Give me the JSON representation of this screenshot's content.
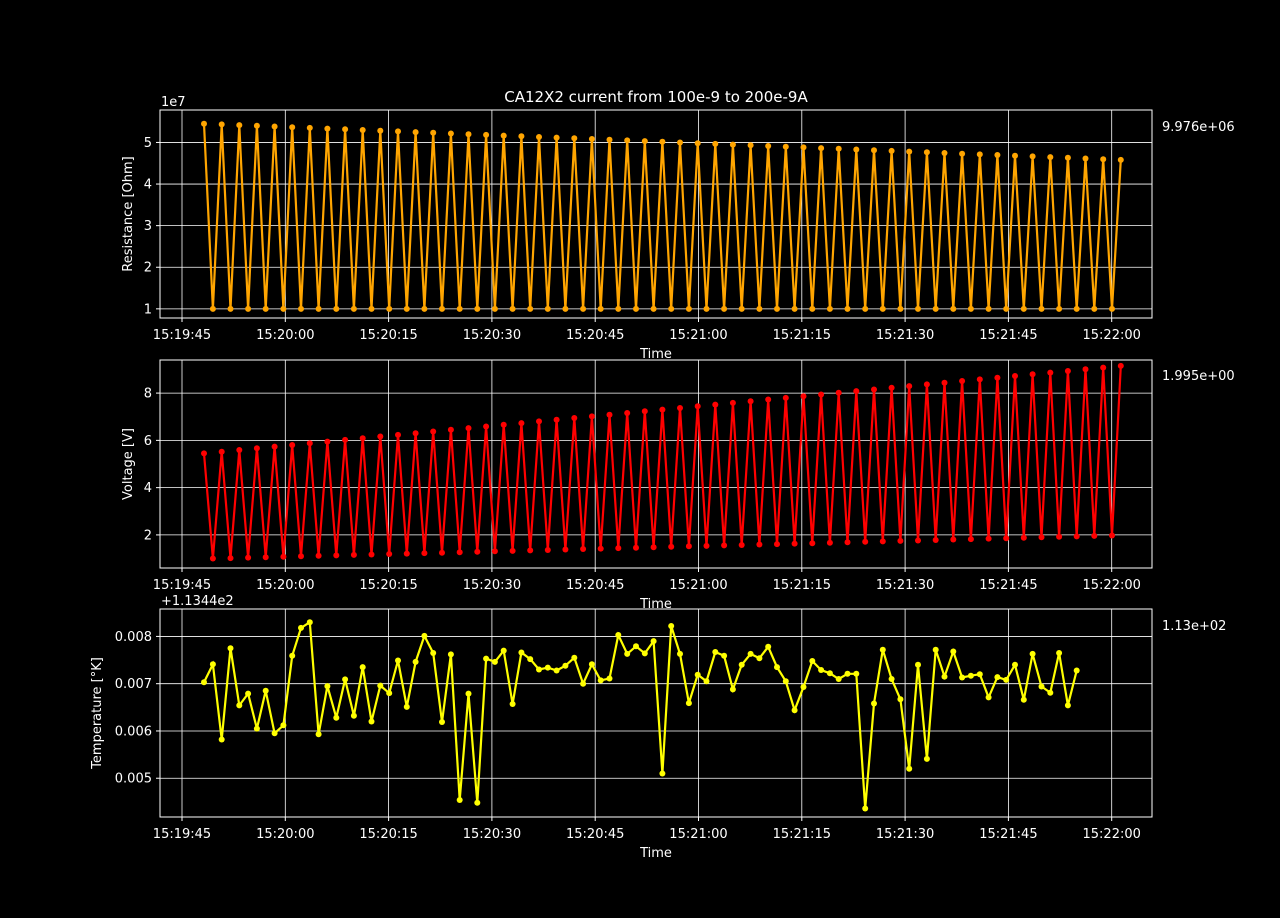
{
  "figure": {
    "title": "CA12X2 current from 100e-9 to 200e-9A"
  },
  "chart_data": [
    {
      "type": "line",
      "title": "CA12X2 current from 100e-9 to 200e-9A",
      "xlabel": "Time",
      "ylabel": "Resistance [Ohm]",
      "offset_text": "1e7",
      "side_text": "9.976e+06",
      "color": "#ffa500",
      "grid": true,
      "x_tick_labels": [
        "15:19:45",
        "15:20:00",
        "15:20:15",
        "15:20:30",
        "15:20:45",
        "15:21:00",
        "15:21:15",
        "15:21:30",
        "15:21:45",
        "15:22:00"
      ],
      "y_ticks": [
        1,
        2,
        3,
        4,
        5
      ],
      "y_tick_labels": [
        "1",
        "2",
        "3",
        "4",
        "5"
      ],
      "ylim": [
        0.78,
        5.78
      ],
      "series": [
        {
          "x_start": "15:19:48.2",
          "x_step_s": 1.28,
          "pattern": "alternating high/low",
          "high_start": 5.45,
          "high_end": 4.58,
          "low": 0.998,
          "points": 105
        }
      ]
    },
    {
      "type": "line",
      "xlabel": "Time",
      "ylabel": "Voltage [V]",
      "side_text": "1.995e+00",
      "color": "#ff0000",
      "grid": true,
      "x_tick_labels": [
        "15:19:45",
        "15:20:00",
        "15:20:15",
        "15:20:30",
        "15:20:45",
        "15:21:00",
        "15:21:15",
        "15:21:30",
        "15:21:45",
        "15:22:00"
      ],
      "y_ticks": [
        2,
        4,
        6,
        8
      ],
      "y_tick_labels": [
        "2",
        "4",
        "6",
        "8"
      ],
      "ylim": [
        0.6,
        9.4
      ],
      "series": [
        {
          "x_start": "15:19:48.2",
          "x_step_s": 1.28,
          "pattern": "alternating high/low",
          "high_start": 5.45,
          "high_end": 9.15,
          "low_start": 1.0,
          "low_end": 1.995,
          "points": 105
        }
      ]
    },
    {
      "type": "line",
      "xlabel": "Time",
      "ylabel": "Temperature [°K]",
      "offset_text": "+1.1344e2",
      "side_text": "1.13e+02",
      "color": "#ffff00",
      "grid": true,
      "x_tick_labels": [
        "15:19:45",
        "15:20:00",
        "15:20:15",
        "15:20:30",
        "15:20:45",
        "15:21:00",
        "15:21:15",
        "15:21:30",
        "15:21:45",
        "15:22:00"
      ],
      "y_ticks": [
        0.005,
        0.006,
        0.007,
        0.008
      ],
      "y_tick_labels": [
        "0.005",
        "0.006",
        "0.007",
        "0.008"
      ],
      "ylim": [
        0.00418,
        0.00858
      ],
      "series": [
        {
          "x_start": "15:19:48.2",
          "x_step_s": 1.28,
          "values": [
            0.00703,
            0.00741,
            0.00582,
            0.00775,
            0.00654,
            0.00679,
            0.00605,
            0.00685,
            0.00595,
            0.00612,
            0.00759,
            0.00818,
            0.0083,
            0.00593,
            0.00695,
            0.00628,
            0.00709,
            0.00632,
            0.00735,
            0.0062,
            0.00696,
            0.0068,
            0.00749,
            0.00651,
            0.00746,
            0.00801,
            0.00765,
            0.00619,
            0.00762,
            0.00454,
            0.00679,
            0.00448,
            0.00753,
            0.00746,
            0.0077,
            0.00657,
            0.00766,
            0.00752,
            0.0073,
            0.00734,
            0.00728,
            0.00738,
            0.00755,
            0.007,
            0.00741,
            0.00707,
            0.00711,
            0.00803,
            0.00763,
            0.00779,
            0.00764,
            0.0079,
            0.0051,
            0.00822,
            0.00763,
            0.00659,
            0.00719,
            0.00705,
            0.00767,
            0.00759,
            0.00688,
            0.0074,
            0.00763,
            0.00754,
            0.00778,
            0.00735,
            0.00705,
            0.00644,
            0.00693,
            0.00748,
            0.00729,
            0.00722,
            0.0071,
            0.00721,
            0.00721,
            0.00436,
            0.00658,
            0.00772,
            0.0071,
            0.00667,
            0.0052,
            0.0074,
            0.00541,
            0.00772,
            0.00715,
            0.00768,
            0.00713,
            0.00717,
            0.0072,
            0.00671,
            0.00714,
            0.00708,
            0.0074,
            0.00666,
            0.00763,
            0.00694,
            0.00681,
            0.00765,
            0.00654,
            0.00728
          ]
        }
      ]
    }
  ]
}
